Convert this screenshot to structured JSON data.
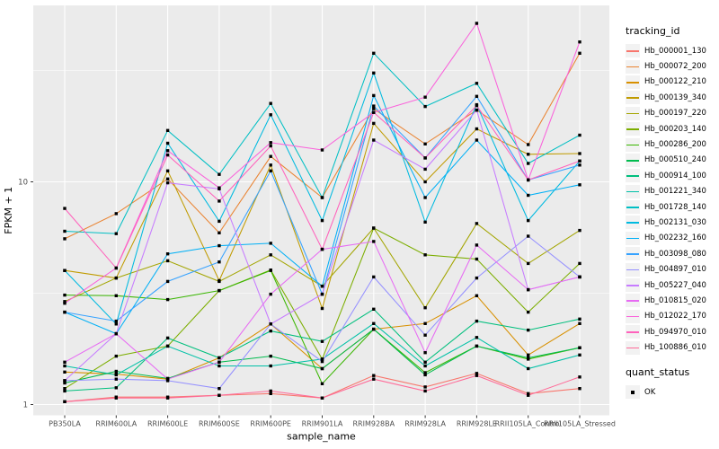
{
  "ui": {
    "background": "#FFFFFF",
    "panel_background": "#EBEBEB",
    "gridline_color": "#FFFFFF",
    "axis_text_color": "#4D4D4D",
    "tick_color": "#333333",
    "legend_key_fill": "#F2F2F2"
  },
  "legend": {
    "title": "tracking_id",
    "position": "right"
  },
  "quant_legend": {
    "title": "quant_status",
    "item_label": "OK",
    "marker": "black-square"
  },
  "chart_data": {
    "type": "line",
    "title": "",
    "xlabel": "sample_name",
    "ylabel": "FPKM + 1",
    "y_scale": "log10",
    "y_ticks": [
      1,
      10
    ],
    "y_tick_labels": [
      "1",
      "10"
    ],
    "y_minor_gridlines": [
      3.162,
      31.623
    ],
    "ylim": [
      0.9,
      60
    ],
    "grid": true,
    "marker": "small-black-square",
    "categories": [
      "PB350LA",
      "RRIM600LA",
      "RRIM600LE",
      "RRIM600SE",
      "RRIM600PE",
      "RRIM901LA",
      "RRIM928BA",
      "RRIM928LA",
      "RRIM928LE",
      "RRII105LA_Control",
      "RRII105LA_Stressed"
    ],
    "series": [
      {
        "name": "Hb_000001_130",
        "color": "#F8766D",
        "values": [
          1.03,
          1.08,
          1.08,
          1.1,
          1.12,
          1.07,
          1.35,
          1.2,
          1.38,
          1.12,
          1.18
        ]
      },
      {
        "name": "Hb_000072_200",
        "color": "#EA8331",
        "values": [
          5.55,
          7.2,
          10.3,
          5.9,
          13.0,
          8.5,
          21.3,
          14.8,
          21.0,
          14.7,
          37.8
        ]
      },
      {
        "name": "Hb_000122_210",
        "color": "#D89000",
        "values": [
          1.4,
          1.37,
          1.3,
          1.62,
          2.3,
          1.45,
          2.18,
          2.31,
          3.08,
          1.67,
          2.31
        ]
      },
      {
        "name": "Hb_000139_340",
        "color": "#C09B00",
        "values": [
          4.0,
          3.7,
          11.2,
          3.6,
          11.9,
          2.7,
          18.3,
          10.0,
          17.3,
          13.3,
          13.4
        ]
      },
      {
        "name": "Hb_000197_220",
        "color": "#A3A500",
        "values": [
          2.9,
          3.7,
          4.42,
          3.57,
          4.7,
          3.4,
          6.2,
          2.72,
          6.5,
          4.3,
          6.05
        ]
      },
      {
        "name": "Hb_000203_140",
        "color": "#7CAE00",
        "values": [
          1.18,
          1.65,
          1.83,
          3.25,
          4.02,
          1.6,
          6.2,
          4.7,
          4.5,
          2.6,
          4.3
        ]
      },
      {
        "name": "Hb_000286_200",
        "color": "#39B600",
        "values": [
          3.1,
          3.08,
          2.96,
          3.25,
          4.0,
          1.24,
          2.18,
          1.39,
          1.83,
          1.6,
          1.8
        ]
      },
      {
        "name": "Hb_000510_240",
        "color": "#00BB4E",
        "values": [
          1.25,
          1.41,
          1.31,
          1.55,
          1.65,
          1.45,
          2.18,
          1.36,
          1.83,
          1.62,
          1.8
        ]
      },
      {
        "name": "Hb_000914_100",
        "color": "#00BF7D",
        "values": [
          1.15,
          1.19,
          1.99,
          1.62,
          2.14,
          1.92,
          2.68,
          1.55,
          2.37,
          2.16,
          2.42
        ]
      },
      {
        "name": "Hb_001221_340",
        "color": "#00C1A7",
        "values": [
          1.49,
          1.36,
          1.83,
          1.49,
          1.49,
          1.6,
          2.31,
          1.49,
          2.0,
          1.45,
          1.67
        ]
      },
      {
        "name": "Hb_001728_140",
        "color": "#00BFC4",
        "values": [
          6.0,
          5.85,
          17.0,
          10.8,
          22.5,
          8.5,
          37.8,
          21.8,
          27.7,
          12.1,
          16.2
        ]
      },
      {
        "name": "Hb_002131_030",
        "color": "#00BAE0",
        "values": [
          4.0,
          2.3,
          14.9,
          6.65,
          20.0,
          6.7,
          30.8,
          6.6,
          22.2,
          6.7,
          12.4
        ]
      },
      {
        "name": "Hb_002232_160",
        "color": "#00B0F6",
        "values": [
          2.6,
          2.08,
          4.75,
          5.17,
          5.3,
          3.4,
          24.4,
          8.5,
          15.4,
          8.7,
          9.7
        ]
      },
      {
        "name": "Hb_003098_080",
        "color": "#35A2FF",
        "values": [
          2.6,
          2.37,
          3.57,
          4.37,
          11.2,
          3.13,
          21.9,
          12.8,
          24.2,
          10.2,
          11.9
        ]
      },
      {
        "name": "Hb_004897_010",
        "color": "#9590FF",
        "values": [
          1.28,
          1.3,
          1.28,
          1.18,
          2.3,
          1.56,
          3.74,
          2.05,
          3.7,
          5.7,
          3.74
        ]
      },
      {
        "name": "Hb_005227_040",
        "color": "#C77CFF",
        "values": [
          1.28,
          2.08,
          9.9,
          9.3,
          2.3,
          3.13,
          15.4,
          11.4,
          21.0,
          3.28,
          3.74
        ]
      },
      {
        "name": "Hb_010815_020",
        "color": "#E76BF3",
        "values": [
          1.55,
          2.08,
          1.3,
          1.55,
          3.13,
          4.98,
          5.4,
          1.71,
          5.2,
          3.28,
          3.74
        ]
      },
      {
        "name": "Hb_012022_170",
        "color": "#FA62DB",
        "values": [
          2.85,
          4.1,
          13.8,
          9.4,
          15.0,
          13.9,
          20.5,
          24.0,
          51.5,
          10.2,
          42.5
        ]
      },
      {
        "name": "Hb_094970_010",
        "color": "#FF62BC",
        "values": [
          7.6,
          4.1,
          13.2,
          8.2,
          14.5,
          4.98,
          20.5,
          12.8,
          22.0,
          10.2,
          12.4
        ]
      },
      {
        "name": "Hb_100886_010",
        "color": "#FF6A98",
        "values": [
          1.03,
          1.07,
          1.07,
          1.1,
          1.15,
          1.07,
          1.3,
          1.15,
          1.35,
          1.1,
          1.33
        ]
      }
    ]
  }
}
